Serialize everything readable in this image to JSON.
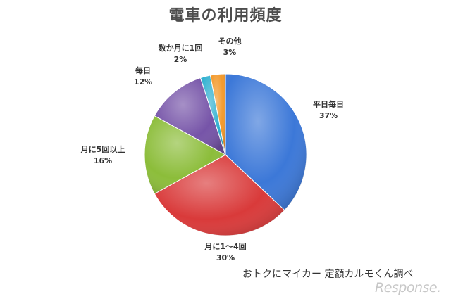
{
  "chart_data": {
    "type": "pie",
    "title": "電車の利用頻度",
    "slices": [
      {
        "label": "平日毎日",
        "value": 37,
        "value_label": "37%",
        "color": "#3c78d8"
      },
      {
        "label": "月に1～4回",
        "value": 30,
        "value_label": "30%",
        "color": "#d93a3a"
      },
      {
        "label": "月に5回以上",
        "value": 16,
        "value_label": "16%",
        "color": "#8cbd3a"
      },
      {
        "label": "毎日",
        "value": 12,
        "value_label": "12%",
        "color": "#7654a8"
      },
      {
        "label": "数か月に1回",
        "value": 2,
        "value_label": "2%",
        "color": "#2fb0d0"
      },
      {
        "label": "その他",
        "value": 3,
        "value_label": "3%",
        "color": "#f39a2c"
      }
    ],
    "start": "12 o'clock",
    "direction": "clockwise"
  },
  "credit": "おトクにマイカー 定額カルモくん調べ",
  "watermark": "Response."
}
